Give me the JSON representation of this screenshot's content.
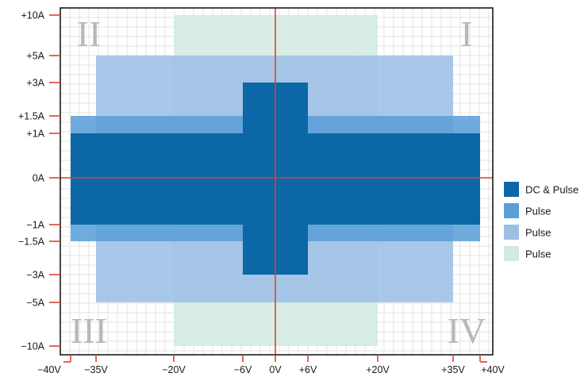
{
  "chart_data": {
    "type": "area",
    "title": "",
    "xlabel": "",
    "ylabel": "",
    "x_ticks": [
      {
        "value": -40,
        "label": "−40V"
      },
      {
        "value": -35,
        "label": "−35V"
      },
      {
        "value": -20,
        "label": "−20V"
      },
      {
        "value": -6,
        "label": "−6V"
      },
      {
        "value": 0,
        "label": "0V"
      },
      {
        "value": 6,
        "label": "+6V"
      },
      {
        "value": 20,
        "label": "+20V"
      },
      {
        "value": 35,
        "label": "+35V"
      },
      {
        "value": 40,
        "label": "+40V"
      }
    ],
    "y_ticks": [
      {
        "value": 10,
        "label": "+10A"
      },
      {
        "value": 5,
        "label": "+5A"
      },
      {
        "value": 3,
        "label": "+3A"
      },
      {
        "value": 1.5,
        "label": "+1.5A"
      },
      {
        "value": 1,
        "label": "+1A"
      },
      {
        "value": 0,
        "label": "0A"
      },
      {
        "value": -1,
        "label": "−1A"
      },
      {
        "value": -1.5,
        "label": "−1.5A"
      },
      {
        "value": -3,
        "label": "−3A"
      },
      {
        "value": -5,
        "label": "−5A"
      },
      {
        "value": -10,
        "label": "−10A"
      }
    ],
    "quadrants": [
      {
        "label": "I",
        "position": "top-right"
      },
      {
        "label": "II",
        "position": "top-left"
      },
      {
        "label": "III",
        "position": "bottom-left"
      },
      {
        "label": "IV",
        "position": "bottom-right"
      }
    ],
    "regions": [
      {
        "legend": "Pulse",
        "color": "#d3eadf",
        "rects": [
          {
            "x": [
              -20,
              20
            ],
            "y": [
              -10,
              10
            ]
          }
        ]
      },
      {
        "legend": "Pulse",
        "color": "#9dbfe6",
        "rects": [
          {
            "x": [
              -35,
              35
            ],
            "y": [
              -5,
              5
            ]
          }
        ]
      },
      {
        "legend": "Pulse",
        "color": "#5b9fd8",
        "rects": [
          {
            "x": [
              -40,
              40
            ],
            "y": [
              -1.5,
              1.5
            ]
          }
        ]
      },
      {
        "legend": "DC & Pulse",
        "color": "#0b67a6",
        "rects": [
          {
            "x": [
              -40,
              40
            ],
            "y": [
              -1,
              1
            ]
          },
          {
            "x": [
              -6,
              6
            ],
            "y": [
              -3,
              3
            ]
          }
        ]
      }
    ],
    "legend": [
      {
        "label": "DC & Pulse",
        "color": "#0b67a6"
      },
      {
        "label": "Pulse",
        "color": "#5b9fd8"
      },
      {
        "label": "Pulse",
        "color": "#9dbfe6"
      },
      {
        "label": "Pulse",
        "color": "#d3eadf"
      }
    ],
    "legend_position": "right",
    "grid": true,
    "axis_line_color": "#e0412c"
  }
}
